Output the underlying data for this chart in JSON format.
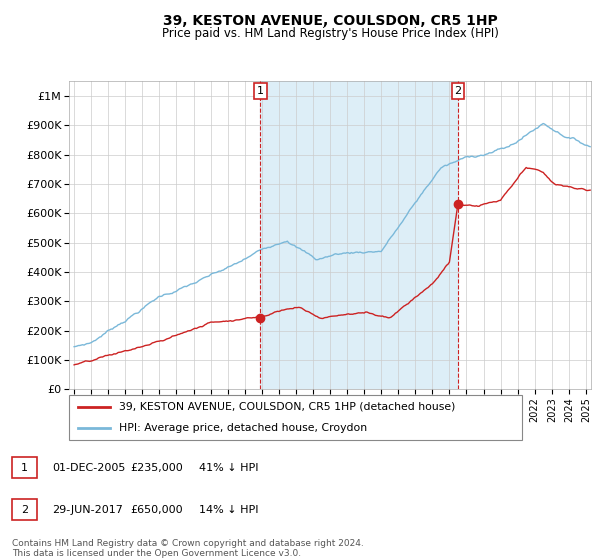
{
  "title": "39, KESTON AVENUE, COULSDON, CR5 1HP",
  "subtitle": "Price paid vs. HM Land Registry's House Price Index (HPI)",
  "ylim": [
    0,
    1050000
  ],
  "xlim_start": 1994.7,
  "xlim_end": 2025.3,
  "hpi_color": "#7ab8d9",
  "hpi_fill_color": "#ddeef7",
  "price_color": "#cc2222",
  "marker1_date": 2005.92,
  "marker1_price": 235000,
  "marker2_date": 2017.5,
  "marker2_price": 650000,
  "legend_line1": "39, KESTON AVENUE, COULSDON, CR5 1HP (detached house)",
  "legend_line2": "HPI: Average price, detached house, Croydon",
  "table_row1": [
    "1",
    "01-DEC-2005",
    "£235,000",
    "41% ↓ HPI"
  ],
  "table_row2": [
    "2",
    "29-JUN-2017",
    "£650,000",
    "14% ↓ HPI"
  ],
  "footnote": "Contains HM Land Registry data © Crown copyright and database right 2024.\nThis data is licensed under the Open Government Licence v3.0.",
  "background_color": "#ffffff",
  "grid_color": "#cccccc",
  "ytick_labels": [
    "£0",
    "£100K",
    "£200K",
    "£300K",
    "£400K",
    "£500K",
    "£600K",
    "£700K",
    "£800K",
    "£900K",
    "£1M"
  ],
  "ytick_values": [
    0,
    100000,
    200000,
    300000,
    400000,
    500000,
    600000,
    700000,
    800000,
    900000,
    1000000
  ]
}
